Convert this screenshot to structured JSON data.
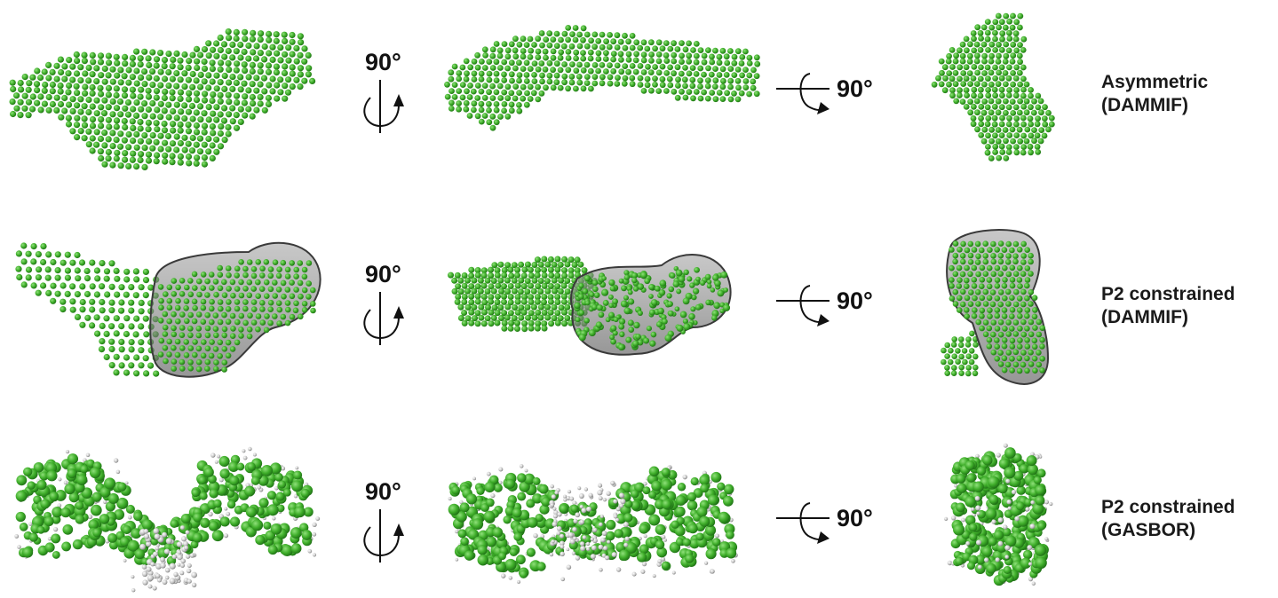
{
  "rotation_label": "90°",
  "rows": [
    {
      "title": "Asymmetric",
      "method": "(DAMMIF)",
      "style": "dummy"
    },
    {
      "title": "P2 constrained",
      "method": "(DAMMIF)",
      "style": "dummy-envelope"
    },
    {
      "title": "P2 constrained",
      "method": "(GASBOR)",
      "style": "chain"
    }
  ],
  "colors": {
    "bead_green": "#3fae2a",
    "bead_dark": "#1d6e14",
    "bead_light": "#8fe07a",
    "bead_grey": "#c8c8c8",
    "envelope": "#6a6a6a",
    "text": "#111111"
  },
  "icons": [
    "vertical-axis-rotation-icon",
    "horizontal-axis-rotation-icon"
  ]
}
